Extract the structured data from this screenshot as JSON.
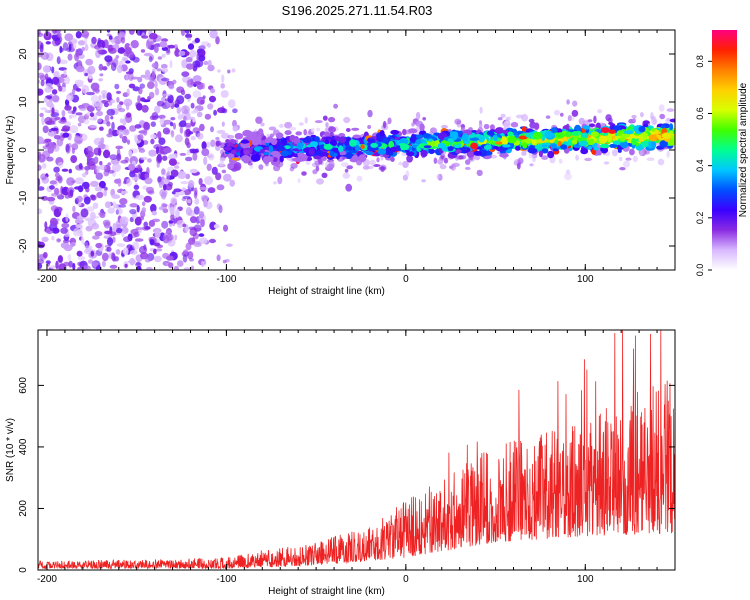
{
  "title": "S196.2025.271.11.54.R03",
  "chart_data": [
    {
      "type": "heatmap",
      "title": "S196.2025.271.11.54.R03",
      "xlabel": "Height of straight line (km)",
      "ylabel": "Frequency (Hz)",
      "xlim": [
        -205,
        150
      ],
      "ylim": [
        -25,
        25
      ],
      "xticks": [
        -200,
        -100,
        0,
        100
      ],
      "yticks": [
        -20,
        -10,
        0,
        10,
        20
      ],
      "colorbar": {
        "label": "Normalized spectral amplitude",
        "range": [
          0.0,
          0.92
        ],
        "ticks": [
          "0.0",
          "0.2",
          "0.4",
          "0.6",
          "0.8"
        ],
        "tick_values": [
          0.0,
          0.2,
          0.4,
          0.6,
          0.8
        ],
        "colors": [
          "#ffffff",
          "#d8b8ff",
          "#8a2be2",
          "#3a00ff",
          "#0050ff",
          "#00c8ff",
          "#00ff90",
          "#40ff00",
          "#d8ff00",
          "#ffd000",
          "#ff8000",
          "#ff2000",
          "#ff0080"
        ]
      },
      "signal_band": {
        "description": "coherent line near 0-3 Hz from about -100 km onward",
        "x_start": -100,
        "center_freq_start": 0,
        "center_freq_end": 3,
        "band_halfwidth": 3
      },
      "noise_region": {
        "x_range": [
          -205,
          -95
        ],
        "freq_range": [
          -25,
          25
        ]
      }
    },
    {
      "type": "line",
      "xlabel": "Height of straight line (km)",
      "ylabel": "SNR (10 * v/v)",
      "xlim": [
        -205,
        150
      ],
      "ylim": [
        0,
        780
      ],
      "xticks": [
        -200,
        -100,
        0,
        100
      ],
      "yticks": [
        0,
        200,
        400,
        600
      ],
      "series_color": "#ee2222",
      "envelope": {
        "x": [
          -205,
          -150,
          -100,
          -80,
          -60,
          -40,
          -20,
          0,
          20,
          40,
          60,
          80,
          100,
          120,
          150
        ],
        "y": [
          30,
          35,
          40,
          65,
          80,
          110,
          140,
          230,
          300,
          380,
          420,
          450,
          480,
          560,
          650
        ]
      },
      "floor": {
        "x": [
          -205,
          -100,
          -50,
          0,
          50,
          100,
          150
        ],
        "y": [
          5,
          5,
          15,
          40,
          90,
          110,
          120
        ]
      }
    }
  ]
}
